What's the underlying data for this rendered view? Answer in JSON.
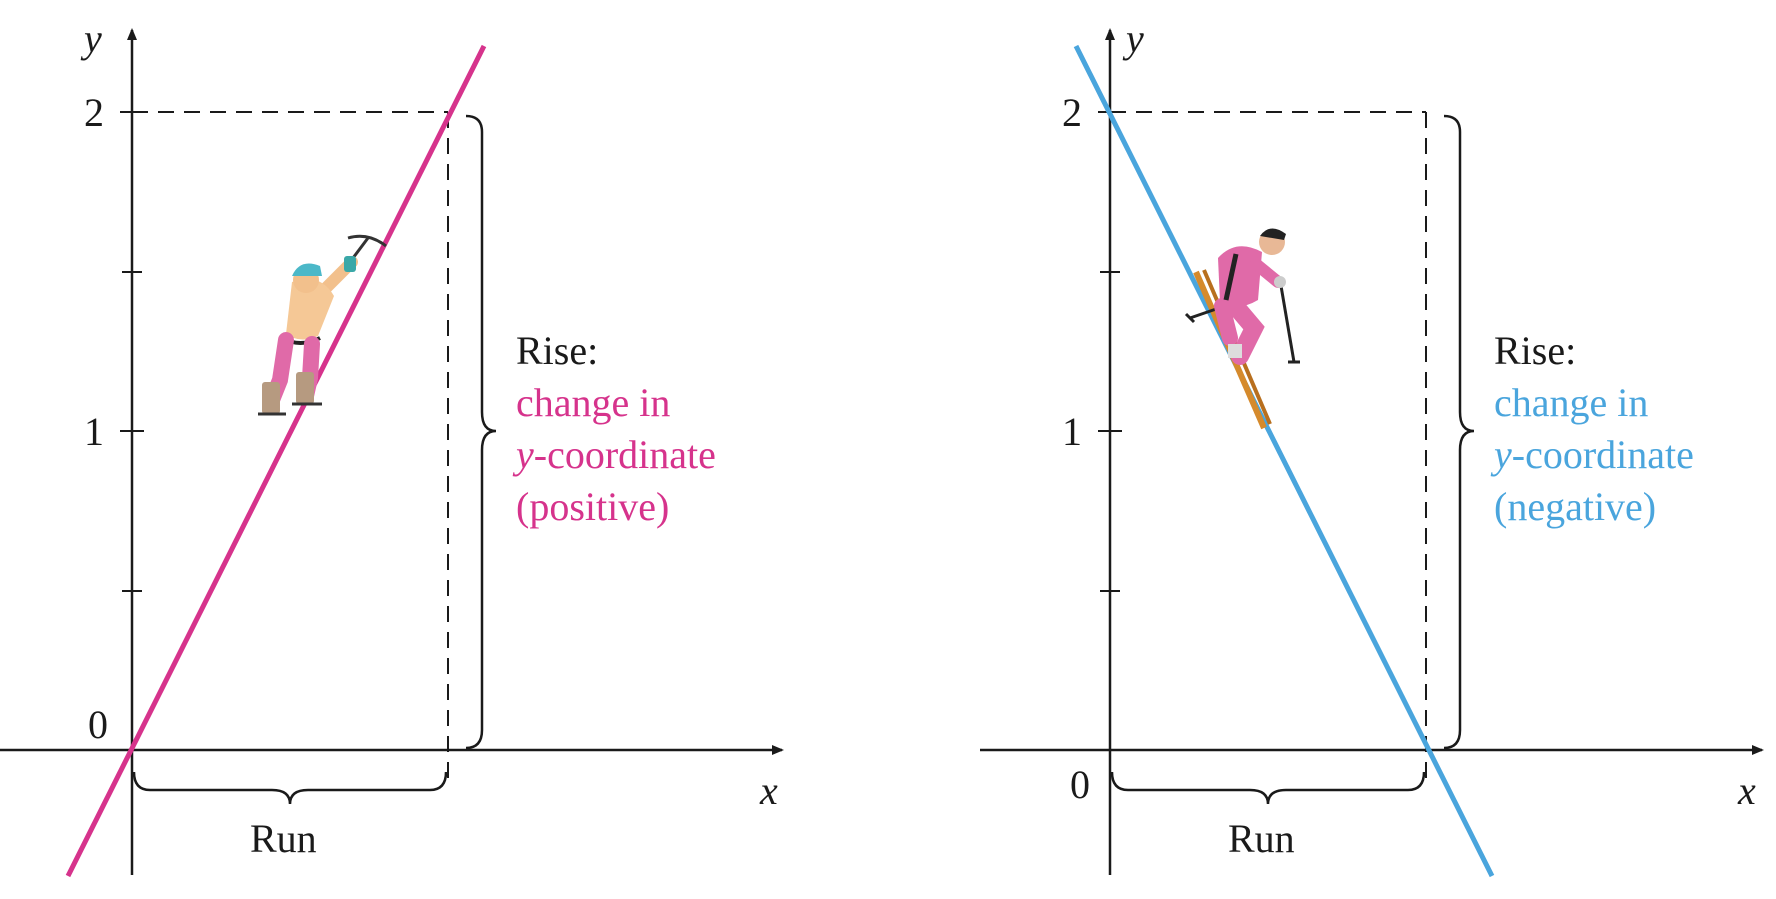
{
  "colors": {
    "positive_line": "#d6338c",
    "negative_line": "#4aa5dd",
    "axis": "#1a1a1a",
    "dashed": "#1a1a1a"
  },
  "left_panel": {
    "y_axis_label": "y",
    "x_axis_label": "x",
    "tick_2": "2",
    "tick_1": "1",
    "tick_0": "0",
    "run_label": "Run",
    "rise_heading": "Rise:",
    "rise_line1": "change in",
    "rise_line2_var": "y",
    "rise_line2_rest": "-coordinate",
    "rise_line3": "(positive)",
    "figure": "ice-climber"
  },
  "right_panel": {
    "y_axis_label": "y",
    "x_axis_label": "x",
    "tick_2": "2",
    "tick_1": "1",
    "tick_0": "0",
    "run_label": "Run",
    "rise_heading": "Rise:",
    "rise_line1": "change in",
    "rise_line2_var": "y",
    "rise_line2_rest": "-coordinate",
    "rise_line3": "(negative)",
    "figure": "skier"
  }
}
